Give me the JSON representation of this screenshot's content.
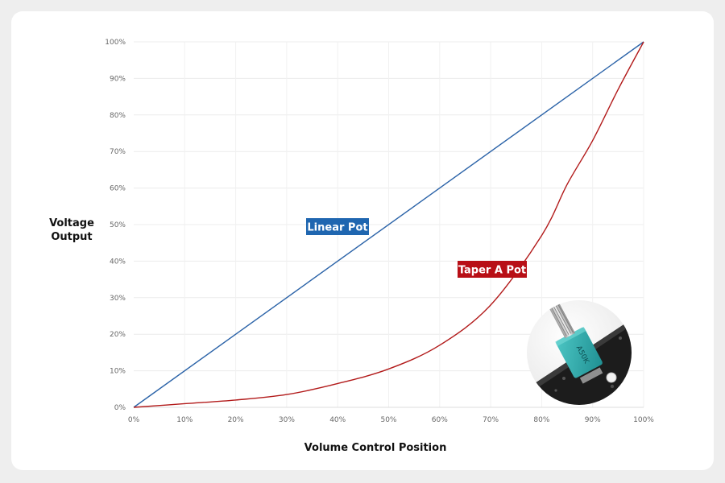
{
  "chart_data": {
    "type": "line",
    "xlabel": "Volume Control Position",
    "ylabel_lines": [
      "Voltage",
      "Output"
    ],
    "xlim": [
      0,
      100
    ],
    "ylim": [
      0,
      100
    ],
    "x_ticks": [
      "0%",
      "10%",
      "20%",
      "30%",
      "40%",
      "50%",
      "60%",
      "70%",
      "80%",
      "90%",
      "100%"
    ],
    "y_ticks": [
      "0%",
      "10%",
      "20%",
      "30%",
      "40%",
      "50%",
      "60%",
      "70%",
      "80%",
      "90%",
      "100%"
    ],
    "grid": true,
    "series": [
      {
        "name": "Linear Pot",
        "color": "#2b63a8",
        "label_bg": "#1f66b0",
        "x": [
          0,
          100
        ],
        "y": [
          0,
          100
        ]
      },
      {
        "name": "Taper A Pot",
        "color": "#b21a1a",
        "label_bg": "#b80f16",
        "x": [
          0,
          10,
          20,
          30,
          40,
          50,
          60,
          70,
          80,
          85,
          90,
          95,
          100
        ],
        "y": [
          0,
          1,
          2,
          3.5,
          6.5,
          10.5,
          17,
          28,
          47,
          61,
          73,
          87,
          100
        ]
      }
    ]
  },
  "image": {
    "icon": "rotary-potentiometer-photo",
    "part_marking": "A50K",
    "colors": {
      "body": "#2fb0b0",
      "shaft": "#c8c8c8",
      "board": "#1c1c1c"
    }
  }
}
